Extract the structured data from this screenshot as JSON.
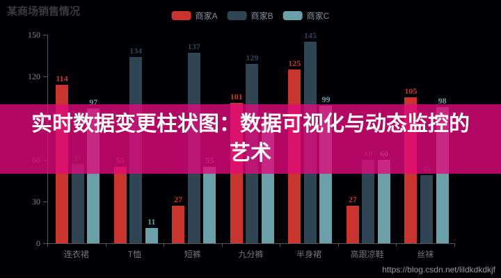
{
  "title": "某商场销售情况",
  "banner": {
    "line1": "实时数据变更柱状图：数据可视化与动态监控的",
    "line2": "艺术",
    "bg": "rgba(222, 10, 122, 0.8)"
  },
  "watermark": "https://blog.csdn.net/lildkdkdkjf",
  "colors": {
    "series_a": "#c9342e",
    "series_b": "#2f4554",
    "series_c": "#6ca0a8",
    "axis_line": "#56565e",
    "axis_label": "#85858d",
    "background": "#000005"
  },
  "chart_data": {
    "type": "bar",
    "title": "某商场销售情况",
    "categories": [
      "连衣裙",
      "T恤",
      "短裤",
      "九分裤",
      "半身裙",
      "高跟凉鞋",
      "丝袜"
    ],
    "series": [
      {
        "name": "商家A",
        "color": "#c9342e",
        "values": [
          114,
          55,
          27,
          101,
          125,
          27,
          105
        ]
      },
      {
        "name": "商家B",
        "color": "#2f4554",
        "values": [
          57,
          134,
          137,
          129,
          145,
          60,
          49
        ]
      },
      {
        "name": "商家C",
        "color": "#6ca0a8",
        "values": [
          97,
          11,
          55,
          88,
          99,
          60,
          98
        ]
      }
    ],
    "xlabel": "",
    "ylabel": "",
    "ylim": [
      0,
      150
    ],
    "yticks": [
      0,
      30,
      60,
      90,
      120,
      150
    ],
    "grid": false,
    "legend_position": "top",
    "value_labels": true
  }
}
